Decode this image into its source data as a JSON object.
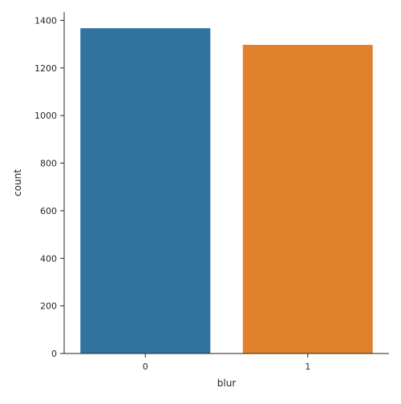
{
  "chart_data": {
    "type": "bar",
    "categories": [
      "0",
      "1"
    ],
    "values": [
      1367,
      1297
    ],
    "colors": [
      "#3274a1",
      "#e1812c"
    ],
    "xlabel": "blur",
    "ylabel": "count",
    "ylim": [
      0,
      1435
    ],
    "yticks": [
      0,
      200,
      400,
      600,
      800,
      1000,
      1200,
      1400
    ],
    "ytick_labels": [
      "0",
      "200",
      "400",
      "600",
      "800",
      "1000",
      "1200",
      "1400"
    ],
    "grid": false,
    "legend": "none"
  }
}
